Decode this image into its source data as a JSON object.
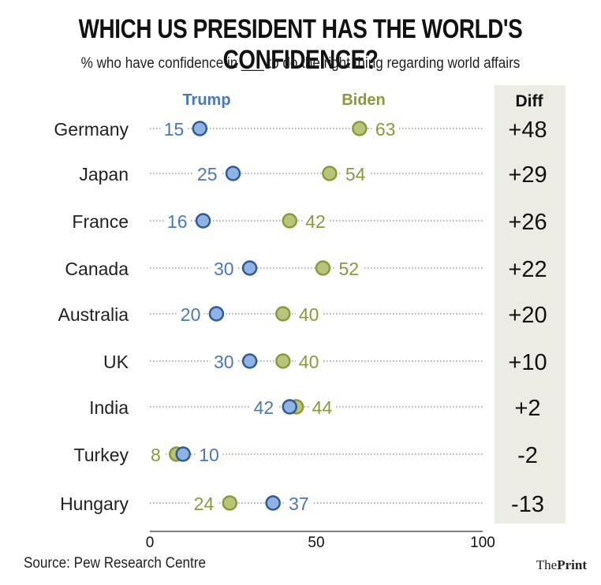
{
  "title": "WHICH US PRESIDENT HAS THE WORLD'S CONFIDENCE?",
  "subtitle": "% who have confidence in ___ to do the right thing regarding world affairs",
  "source": "Source: Pew Research Centre",
  "brand": {
    "light": "The",
    "bold": "Print"
  },
  "colors": {
    "trump": "#4a78b8",
    "trump_fill": "#8fb3e3",
    "biden": "#8a9a3a",
    "biden_fill": "#b8c47a",
    "diff_bg": "#ecebe4"
  },
  "chart_data": {
    "type": "dot",
    "title": "WHICH US PRESIDENT HAS THE WORLD'S CONFIDENCE?",
    "subtitle": "% who have confidence in ___ to do the right thing regarding world affairs",
    "categories": [
      "Germany",
      "Japan",
      "France",
      "Canada",
      "Australia",
      "UK",
      "India",
      "Turkey",
      "Hungary"
    ],
    "series": [
      {
        "name": "Trump",
        "values": [
          15,
          25,
          16,
          30,
          20,
          30,
          42,
          10,
          37
        ]
      },
      {
        "name": "Biden",
        "values": [
          63,
          54,
          42,
          52,
          40,
          40,
          44,
          8,
          24
        ]
      }
    ],
    "diff_header": "Diff",
    "diff": [
      "+48",
      "+29",
      "+26",
      "+22",
      "+20",
      "+10",
      "+2",
      "-2",
      "-13"
    ],
    "xlim": [
      0,
      100
    ],
    "xticks": [
      "0",
      "50",
      "100"
    ],
    "legend": "top"
  }
}
